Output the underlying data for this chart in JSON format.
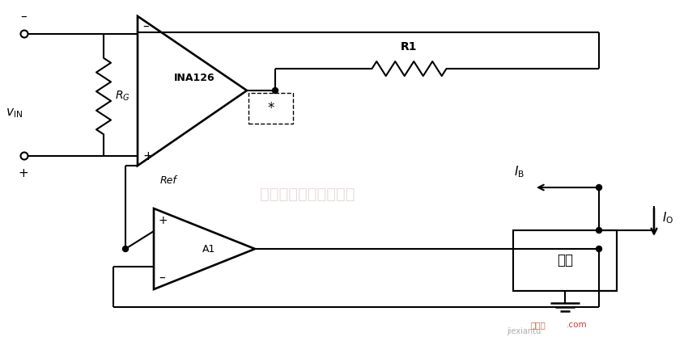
{
  "bg_color": "#ffffff",
  "line_color": "#000000",
  "line_width": 1.5,
  "fig_width": 8.5,
  "fig_height": 4.22,
  "watermark_text": "杭州将睿科技有限公司",
  "watermark_color": "#c8a0a0",
  "watermark_alpha": 0.4,
  "jiexiantu_color": "#c05828",
  "com_color": "#cc2222",
  "label_vin": "$v_{\\mathrm{IN}}$",
  "label_rg": "$R_G$",
  "label_ina": "INA126",
  "label_ref": "Ref",
  "label_r1": "R1",
  "label_ib": "$I_\\mathrm{B}$",
  "label_io": "$I_\\mathrm{O}$",
  "label_a1": "A1",
  "label_load": "负载",
  "label_minus": "–",
  "label_plus": "+"
}
